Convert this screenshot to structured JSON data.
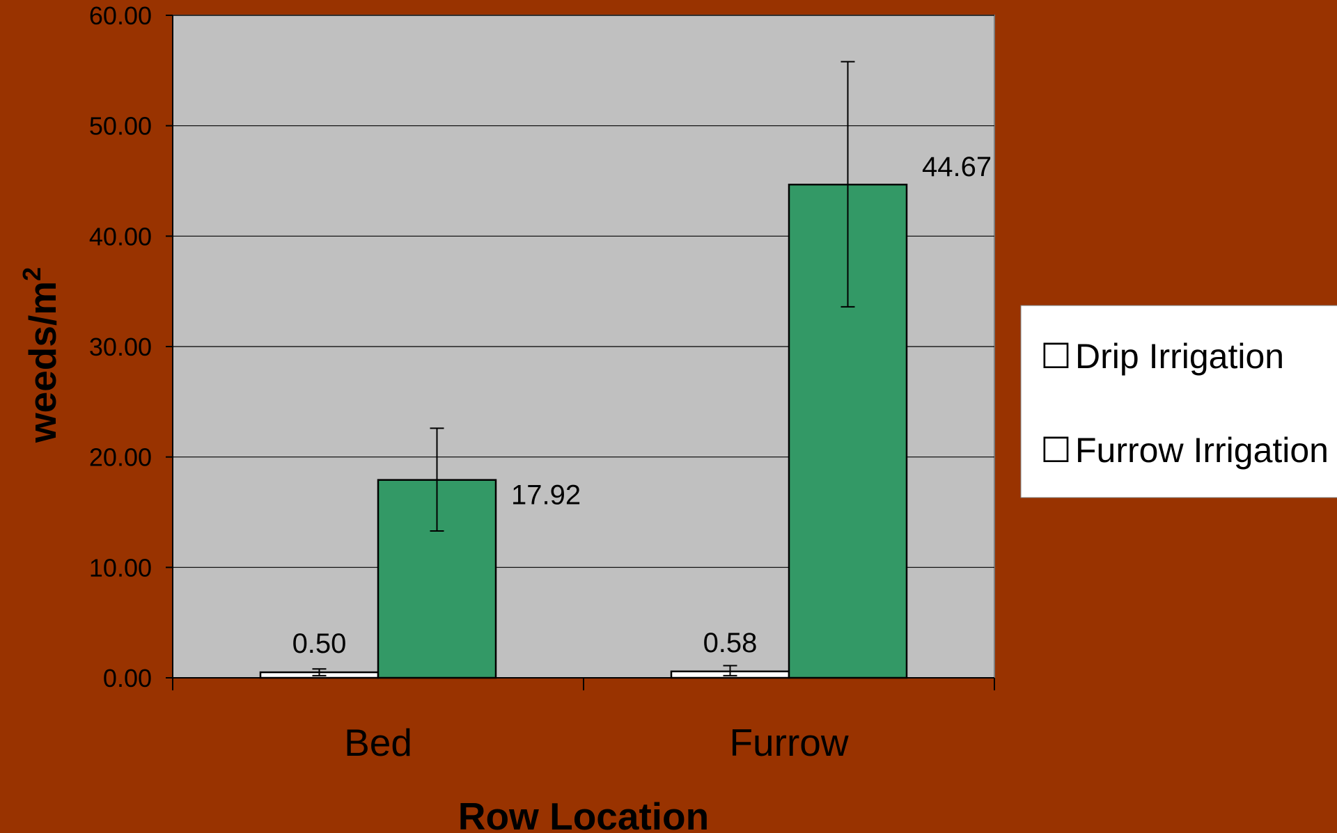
{
  "chart_data": {
    "type": "bar",
    "categories": [
      "Bed",
      "Furrow"
    ],
    "series": [
      {
        "name": "Drip Irrigation",
        "values": [
          0.5,
          0.58
        ],
        "error_low": [
          0.2,
          0.2
        ],
        "error_high": [
          0.8,
          1.1
        ],
        "color": "#FFFFFF",
        "data_labels": [
          "0.50",
          "0.58"
        ]
      },
      {
        "name": "Furrow Irrigation",
        "values": [
          17.92,
          44.67
        ],
        "error_low": [
          13.3,
          33.6
        ],
        "error_high": [
          22.6,
          55.8
        ],
        "color": "#339966",
        "data_labels": [
          "17.92",
          "44.67"
        ]
      }
    ],
    "xlabel": "Row Location",
    "ylabel": "weeds/m",
    "ylabel_superscript": "2",
    "ylim": [
      0,
      60
    ],
    "yticks": [
      "0.00",
      "10.00",
      "20.00",
      "30.00",
      "40.00",
      "50.00",
      "60.00"
    ],
    "grid": true,
    "legend_position": "right",
    "legend_marker": "☐",
    "plot_background": "#C0C0C0",
    "page_background": "#993300"
  }
}
